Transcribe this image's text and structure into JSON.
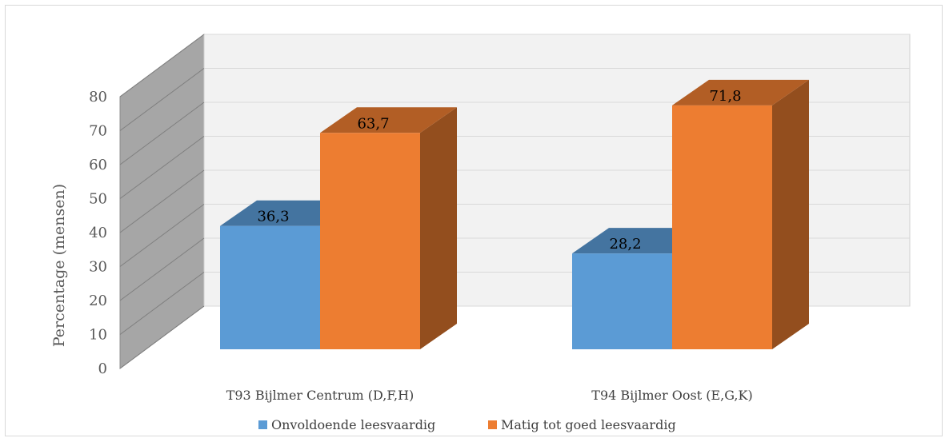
{
  "chart_data": {
    "type": "bar",
    "categories": [
      "T93 Bijlmer Centrum (D,F,H)",
      "T94 Bijlmer Oost (E,G,K)"
    ],
    "series": [
      {
        "name": "Onvoldoende leesvaardig",
        "values": [
          36.3,
          28.2
        ],
        "color": "#5b9bd5"
      },
      {
        "name": "Matig tot goed leesvaardig",
        "values": [
          63.7,
          71.8
        ],
        "color": "#ed7d31"
      }
    ],
    "data_labels": [
      [
        "36,3",
        "28,2"
      ],
      [
        "63,7",
        "71,8"
      ]
    ],
    "title": "",
    "xlabel": "",
    "ylabel": "Percentage (mensen)",
    "ylim": [
      0,
      80
    ],
    "yticks": [
      0,
      10,
      20,
      30,
      40,
      50,
      60,
      70,
      80
    ],
    "grid": true,
    "legend_position": "bottom",
    "style": "3d-clustered-column"
  }
}
